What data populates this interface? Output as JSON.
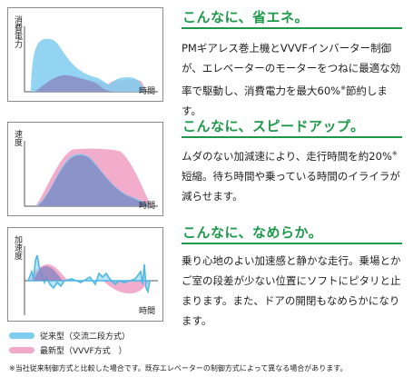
{
  "colors": {
    "accent": "#1c9a4a",
    "conventional": "#7fcdee",
    "latest": "#f0a9c8",
    "overlap": "#8a86c0",
    "frame": "#8a8a8a"
  },
  "panels": [
    {
      "ylabel": "消費電力",
      "xlabel": "時間",
      "heading": "こんなに、省エネ。",
      "desc": "PMギアレス巻上機とVVVFインバーター制御が、エレベーターのモーターをつねに最適な効率で駆動し、消費電力を最大60%",
      "desc_sup": "※",
      "desc_tail": "節約します。"
    },
    {
      "ylabel": "速度",
      "xlabel": "時間",
      "heading": "こんなに、スピードアップ。",
      "desc": "ムダのない加減速により、走行時間を約20%",
      "desc_sup": "※",
      "desc_tail": "短縮。待ち時間や乗っている時間のイライラが減らせます。"
    },
    {
      "ylabel": "加速度",
      "xlabel": "時間",
      "heading": "こんなに、なめらか。",
      "desc": "乗り心地のよい加速感と静かな走行。乗場とかご室の段差が少ない位置にソフトにピタリと止まります。また、ドアの開閉もなめらかになります。",
      "desc_sup": "",
      "desc_tail": ""
    }
  ],
  "legend": [
    {
      "label": "従来型（交流二段方式）",
      "color": "#7fcdee"
    },
    {
      "label": "最新型（VVVF方式　）",
      "color": "#f0a9c8"
    }
  ],
  "footnote": "※当社従来制御方式と比較した場合です。既存エレベーターの制御方式によって異なる場合があります。"
}
